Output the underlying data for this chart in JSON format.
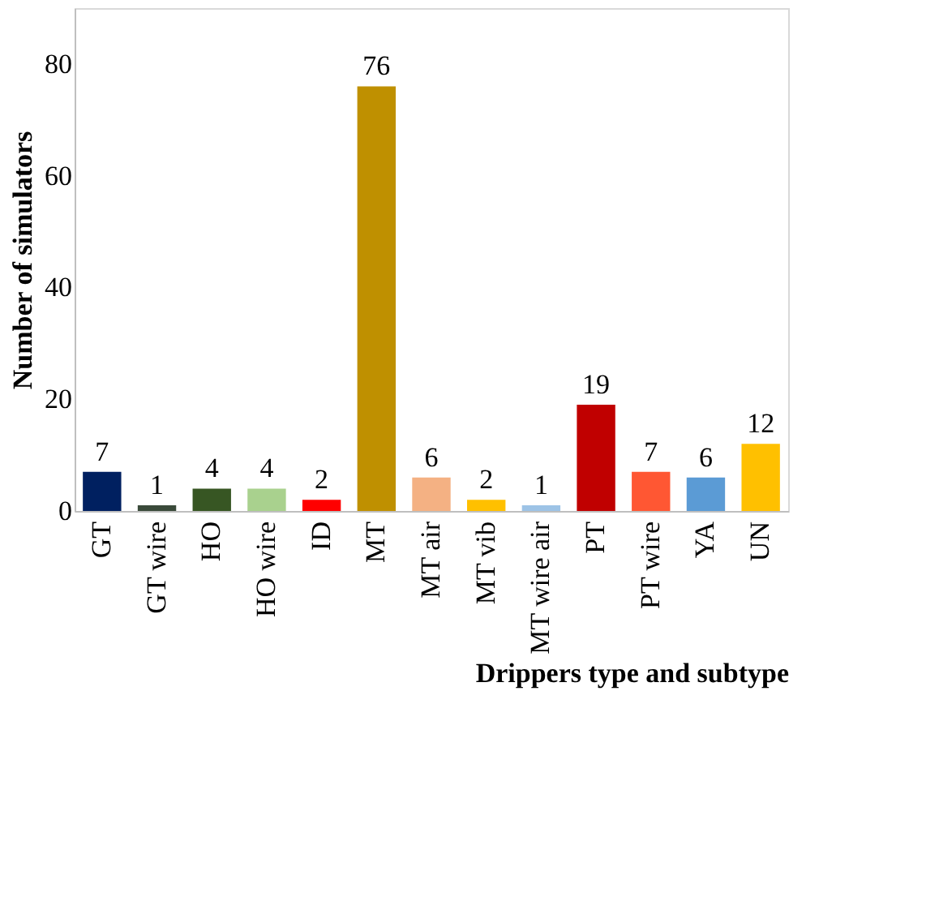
{
  "chart_data": {
    "type": "bar",
    "xlabel": "Drippers type and subtype",
    "ylabel": "Number of simulators",
    "categories": [
      "GT",
      "GT wire",
      "HO",
      "HO wire",
      "ID",
      "MT",
      "MT air",
      "MT vib",
      "MT wire air",
      "PT",
      "PT wire",
      "YA",
      "UN"
    ],
    "values": [
      7,
      1,
      4,
      4,
      2,
      76,
      6,
      2,
      1,
      19,
      7,
      6,
      12
    ],
    "colors": [
      "#002060",
      "#3a4a3a",
      "#375623",
      "#a9d18e",
      "#ff0000",
      "#bf9000",
      "#f4b183",
      "#ffc000",
      "#9dc3e6",
      "#c00000",
      "#ff5733",
      "#5b9bd5",
      "#ffc000"
    ],
    "ylim": [
      0,
      90
    ],
    "yticks": [
      0,
      20,
      40,
      60,
      80
    ],
    "grid": false,
    "data_labels": true
  }
}
